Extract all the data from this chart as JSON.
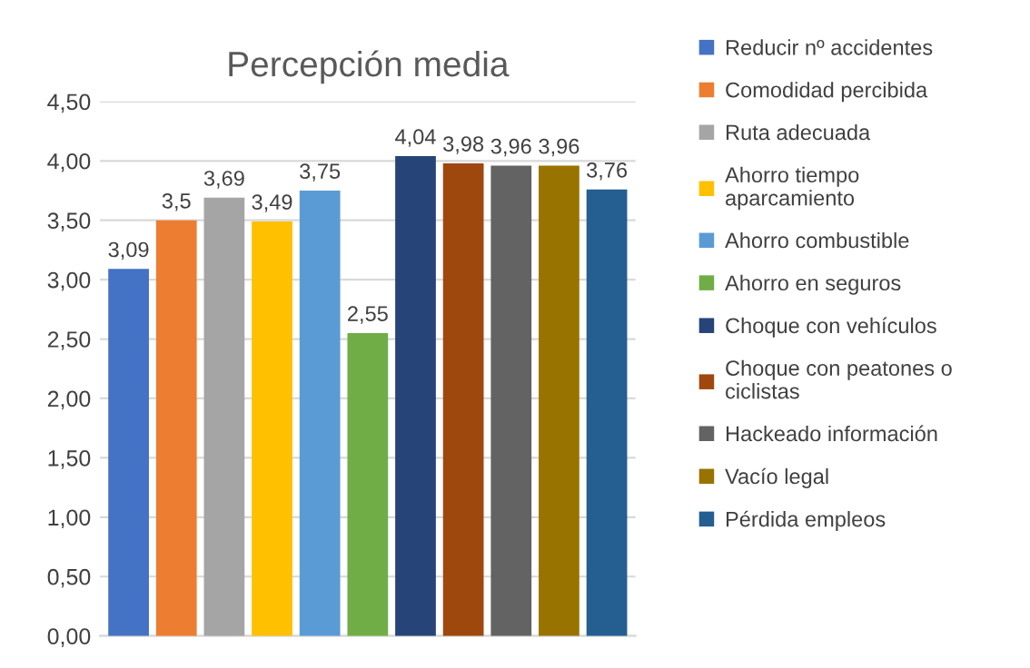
{
  "chart_data": {
    "type": "bar",
    "title": "Percepción media",
    "categories": [
      null
    ],
    "series": [
      {
        "name": "Reducir nº accidentes",
        "color": "#4472c4",
        "values": [
          3.09
        ],
        "value_labels": [
          "3,09"
        ]
      },
      {
        "name": "Comodidad percibida",
        "color": "#ed7d31",
        "values": [
          3.5
        ],
        "value_labels": [
          "3,5"
        ]
      },
      {
        "name": "Ruta adecuada",
        "color": "#a5a5a5",
        "values": [
          3.69
        ],
        "value_labels": [
          "3,69"
        ]
      },
      {
        "name": "Ahorro tiempo aparcamiento",
        "color": "#ffc000",
        "values": [
          3.49
        ],
        "value_labels": [
          "3,49"
        ]
      },
      {
        "name": "Ahorro combustible",
        "color": "#5b9bd5",
        "values": [
          3.75
        ],
        "value_labels": [
          "3,75"
        ]
      },
      {
        "name": "Ahorro en seguros",
        "color": "#70ad47",
        "values": [
          2.55
        ],
        "value_labels": [
          "2,55"
        ]
      },
      {
        "name": "Choque con vehículos",
        "color": "#264478",
        "values": [
          4.04
        ],
        "value_labels": [
          "4,04"
        ]
      },
      {
        "name": "Choque con peatones o ciclistas",
        "color": "#9e480e",
        "values": [
          3.98
        ],
        "value_labels": [
          "3,98"
        ]
      },
      {
        "name": "Hackeado información",
        "color": "#636363",
        "values": [
          3.96
        ],
        "value_labels": [
          "3,96"
        ]
      },
      {
        "name": "Vacío legal",
        "color": "#997300",
        "values": [
          3.96
        ],
        "value_labels": [
          "3,96"
        ]
      },
      {
        "name": "Pérdida empleos",
        "color": "#255e91",
        "values": [
          3.76
        ],
        "value_labels": [
          "3,76"
        ]
      }
    ],
    "ylim": [
      0,
      4.5
    ],
    "yticks": [
      {
        "value": 0,
        "label": "0,00"
      },
      {
        "value": 0.5,
        "label": "0,50"
      },
      {
        "value": 1,
        "label": "1,00"
      },
      {
        "value": 1.5,
        "label": "1,50"
      },
      {
        "value": 2,
        "label": "2,00"
      },
      {
        "value": 2.5,
        "label": "2,50"
      },
      {
        "value": 3,
        "label": "3,00"
      },
      {
        "value": 3.5,
        "label": "3,50"
      },
      {
        "value": 4,
        "label": "4,00"
      },
      {
        "value": 4.5,
        "label": "4,50"
      }
    ],
    "grid": "y",
    "legend": "right",
    "tick_labels": "y"
  }
}
